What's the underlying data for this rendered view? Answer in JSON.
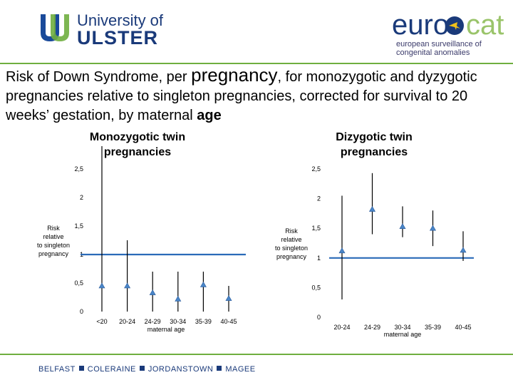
{
  "header": {
    "uu_line1": "University of",
    "uu_line2": "ULSTER",
    "eurocat_left": "euro",
    "eurocat_right": "cat",
    "eurocat_tagline": [
      "european surveillance of",
      "congenital anomalies"
    ]
  },
  "title": {
    "part1": "Risk of Down Syndrome, per ",
    "part2": "pregnancy",
    "part3": ", for monozygotic and dyzygotic pregnancies relative to singleton pregnancies, corrected for survival to 20 weeks’ gestation, by maternal ",
    "part4": "age"
  },
  "footer": {
    "places": [
      "BELFAST",
      "COLERAINE",
      "JORDANSTOWN",
      "MAGEE"
    ]
  },
  "colors": {
    "marker": "#4a86c8",
    "refline": "#2a6ab8",
    "green": "#6fae3f",
    "navy": "#1a3a7a"
  },
  "chart_data": [
    {
      "type": "scatter",
      "title": [
        "Monozygotic twin",
        "pregnancies"
      ],
      "ylabel": [
        "Risk",
        "relative",
        "to singleton",
        "pregnancy"
      ],
      "xlabel": "maternal age",
      "categories": [
        "<20",
        "20-24",
        "24-29",
        "30-34",
        "35-39",
        "40-45"
      ],
      "yticks": [
        "0",
        "0,5",
        "1",
        "1,5",
        "2",
        "2,5"
      ],
      "ylim": [
        0,
        2.5
      ],
      "reference_line": 1,
      "series": [
        {
          "values": [
            0.45,
            0.45,
            0.33,
            0.22,
            0.47,
            0.23
          ],
          "ci_low": [
            0.0,
            0.0,
            0.0,
            0.0,
            0.0,
            0.0
          ],
          "ci_high": [
            3.2,
            1.25,
            0.7,
            0.7,
            0.7,
            0.45
          ]
        }
      ]
    },
    {
      "type": "scatter",
      "title": [
        "Dizygotic twin",
        "pregnancies"
      ],
      "ylabel": [
        "Risk",
        "relative",
        "to singleton",
        "pregnancy"
      ],
      "xlabel": "maternal age",
      "categories": [
        "20-24",
        "24-29",
        "30-34",
        "35-39",
        "40-45"
      ],
      "yticks": [
        "0",
        "0,5",
        "1",
        "1,5",
        "2",
        "2,5"
      ],
      "ylim": [
        0,
        2.5
      ],
      "reference_line": 1,
      "series": [
        {
          "values": [
            1.12,
            1.82,
            1.53,
            1.5,
            1.13
          ],
          "ci_low": [
            0.3,
            1.4,
            1.35,
            1.2,
            0.95
          ],
          "ci_high": [
            2.05,
            2.43,
            1.87,
            1.8,
            1.45
          ]
        }
      ]
    }
  ]
}
